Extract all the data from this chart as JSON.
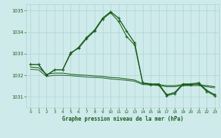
{
  "title": "Graphe pression niveau de la mer (hPa)",
  "bg_color": "#ceeaea",
  "grid_color": "#add4d4",
  "line_color": "#1a5c1a",
  "text_color": "#1a5c1a",
  "xlim": [
    -0.5,
    23.5
  ],
  "ylim": [
    1030.5,
    1035.3
  ],
  "yticks": [
    1031,
    1032,
    1033,
    1034,
    1035
  ],
  "xticks": [
    0,
    1,
    2,
    3,
    4,
    5,
    6,
    7,
    8,
    9,
    10,
    11,
    12,
    13,
    14,
    15,
    16,
    17,
    18,
    19,
    20,
    21,
    22,
    23
  ],
  "series": [
    {
      "x": [
        0,
        1,
        2,
        3,
        4,
        5,
        6,
        7,
        8,
        9,
        10,
        11,
        12,
        13,
        14,
        15,
        16,
        17,
        18,
        19,
        20,
        21,
        22,
        23
      ],
      "y": [
        1032.5,
        1032.5,
        1032.0,
        1032.25,
        1032.25,
        1033.0,
        1033.3,
        1033.75,
        1034.1,
        1034.65,
        1034.95,
        1034.65,
        1034.05,
        1033.5,
        1031.65,
        1031.6,
        1031.6,
        1031.1,
        1031.2,
        1031.6,
        1031.6,
        1031.65,
        1031.3,
        1031.1
      ],
      "marker": true,
      "lw": 1.0
    },
    {
      "x": [
        0,
        1,
        2,
        3,
        4,
        5,
        6,
        7,
        8,
        9,
        10,
        11,
        12,
        13,
        14,
        15,
        16,
        17,
        18,
        19,
        20,
        21,
        22,
        23
      ],
      "y": [
        1032.5,
        1032.5,
        1032.0,
        1032.25,
        1032.25,
        1033.05,
        1033.25,
        1033.7,
        1034.05,
        1034.6,
        1034.9,
        1034.5,
        1033.8,
        1033.4,
        1031.65,
        1031.55,
        1031.55,
        1031.05,
        1031.15,
        1031.55,
        1031.55,
        1031.6,
        1031.25,
        1031.05
      ],
      "marker": true,
      "lw": 0.8
    },
    {
      "x": [
        0,
        1,
        2,
        3,
        4,
        5,
        6,
        7,
        8,
        9,
        10,
        11,
        12,
        13,
        14,
        15,
        16,
        17,
        18,
        19,
        20,
        21,
        22,
        23
      ],
      "y": [
        1032.38,
        1032.35,
        1032.05,
        1032.1,
        1032.1,
        1032.05,
        1032.02,
        1032.0,
        1031.97,
        1031.95,
        1031.9,
        1031.88,
        1031.83,
        1031.78,
        1031.62,
        1031.6,
        1031.57,
        1031.52,
        1031.52,
        1031.57,
        1031.57,
        1031.57,
        1031.52,
        1031.47
      ],
      "marker": false,
      "lw": 0.8
    },
    {
      "x": [
        0,
        1,
        2,
        3,
        4,
        5,
        6,
        7,
        8,
        9,
        10,
        11,
        12,
        13,
        14,
        15,
        16,
        17,
        18,
        19,
        20,
        21,
        22,
        23
      ],
      "y": [
        1032.28,
        1032.25,
        1031.95,
        1032.0,
        1032.0,
        1031.98,
        1031.95,
        1031.92,
        1031.9,
        1031.88,
        1031.83,
        1031.8,
        1031.77,
        1031.72,
        1031.57,
        1031.55,
        1031.52,
        1031.47,
        1031.47,
        1031.52,
        1031.52,
        1031.52,
        1031.47,
        1031.42
      ],
      "marker": false,
      "lw": 0.7
    }
  ]
}
